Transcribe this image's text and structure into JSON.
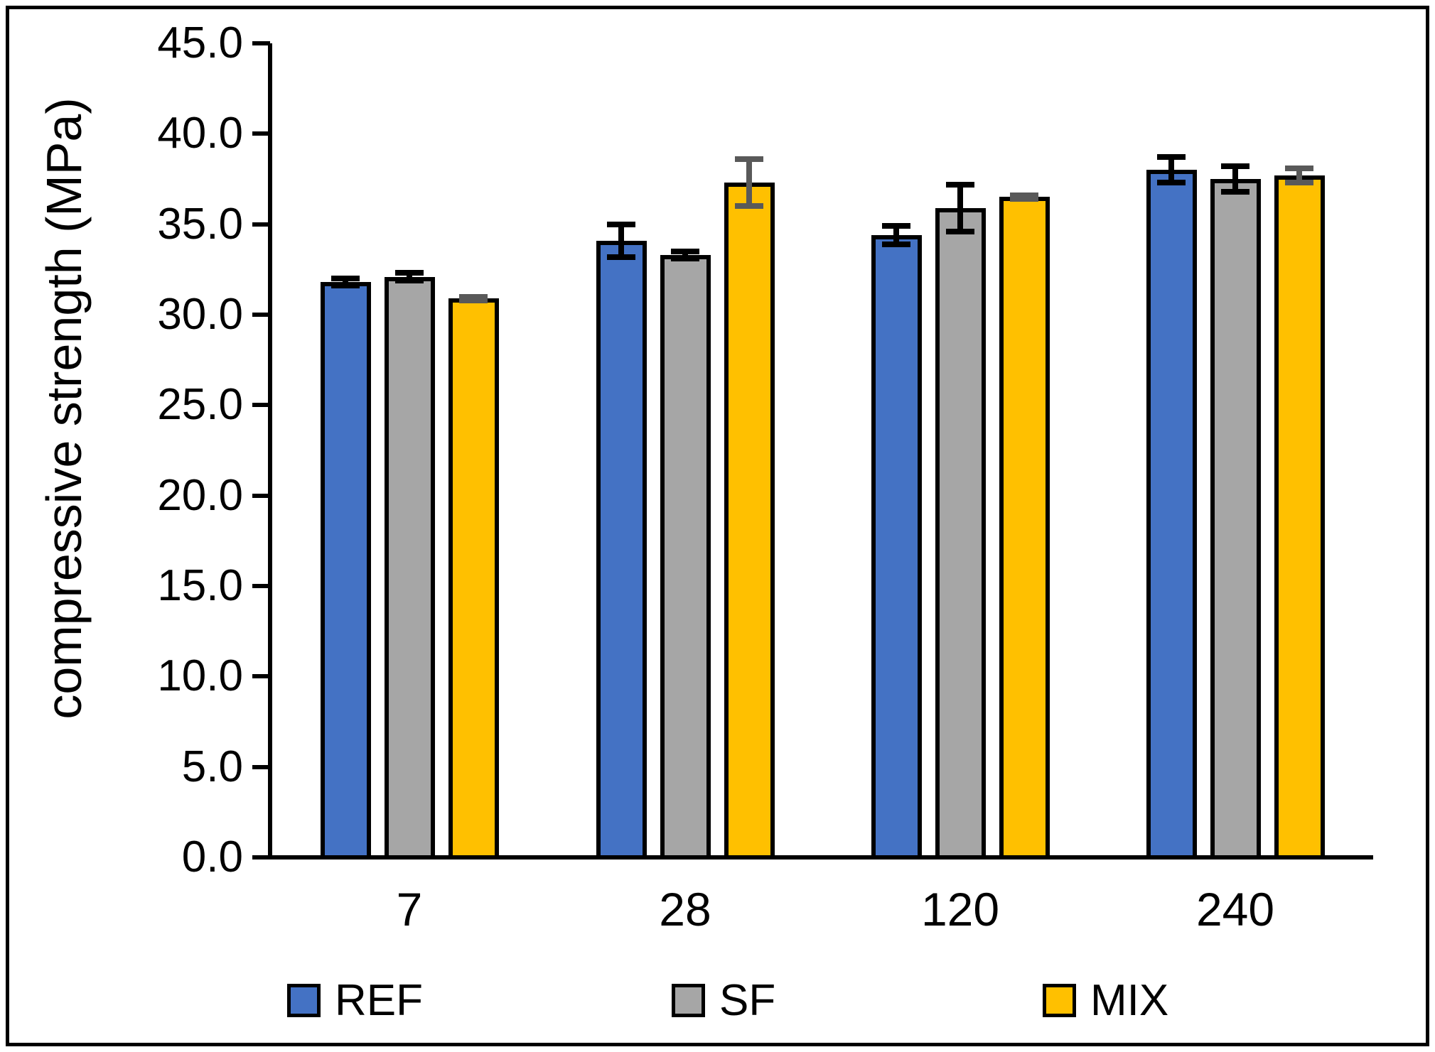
{
  "chart_data": {
    "type": "bar",
    "title": "",
    "categories": [
      "7",
      "28",
      "120",
      "240"
    ],
    "series": [
      {
        "name": "REF",
        "color": "#4472C4",
        "error_color": "#000000",
        "values": [
          31.8,
          34.1,
          34.4,
          38.0
        ],
        "errors": [
          0.2,
          0.9,
          0.5,
          0.7
        ]
      },
      {
        "name": "SF",
        "color": "#A6A6A6",
        "error_color": "#000000",
        "values": [
          32.1,
          33.3,
          35.9,
          37.5
        ],
        "errors": [
          0.2,
          0.2,
          1.3,
          0.7
        ]
      },
      {
        "name": "MIX",
        "color": "#FFC000",
        "error_color": "#595959",
        "values": [
          30.9,
          37.3,
          36.5,
          37.7
        ],
        "errors": [
          0.1,
          1.3,
          0.1,
          0.4
        ]
      }
    ],
    "xlabel": "",
    "ylabel": "compressive strength (MPa)",
    "ylim": [
      0,
      45
    ],
    "ytick_step": 5,
    "ytick_labels": [
      "0.0",
      "5.0",
      "10.0",
      "15.0",
      "20.0",
      "25.0",
      "30.0",
      "35.0",
      "40.0",
      "45.0"
    ],
    "grid": false,
    "legend_position": "bottom",
    "axis_color": "#000000",
    "background_color": "#FFFFFF"
  }
}
